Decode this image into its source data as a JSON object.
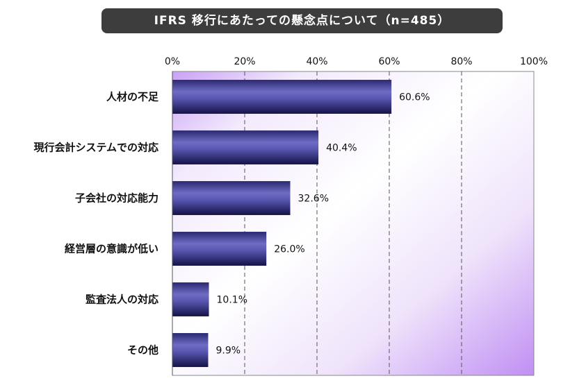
{
  "chart_data": {
    "type": "bar",
    "orientation": "horizontal",
    "title": "IFRS 移行にあたっての懸念点について（n=485）",
    "categories": [
      "人材の不足",
      "現行会計システムでの対応",
      "子会社の対応能力",
      "経営層の意識が低い",
      "監査法人の対応",
      "その他"
    ],
    "values": [
      60.6,
      40.4,
      32.6,
      26.0,
      10.1,
      9.9
    ],
    "value_labels": [
      "60.6%",
      "40.4%",
      "32.6%",
      "26.0%",
      "10.1%",
      "9.9%"
    ],
    "xlim": [
      0,
      100
    ],
    "x_ticks": [
      "0%",
      "20%",
      "40%",
      "60%",
      "80%",
      "100%"
    ],
    "x_axis_position": "top",
    "grid": "vertical dashed",
    "legend": "none",
    "colors": {
      "bar_dark": "#1c1a5e",
      "bar_light": "#6e6cc4",
      "plot_bg_light": "#ffffff",
      "plot_bg_accent": "#c79bf5",
      "title_bg": "#3d3d3d",
      "title_text": "#ffffff"
    }
  }
}
